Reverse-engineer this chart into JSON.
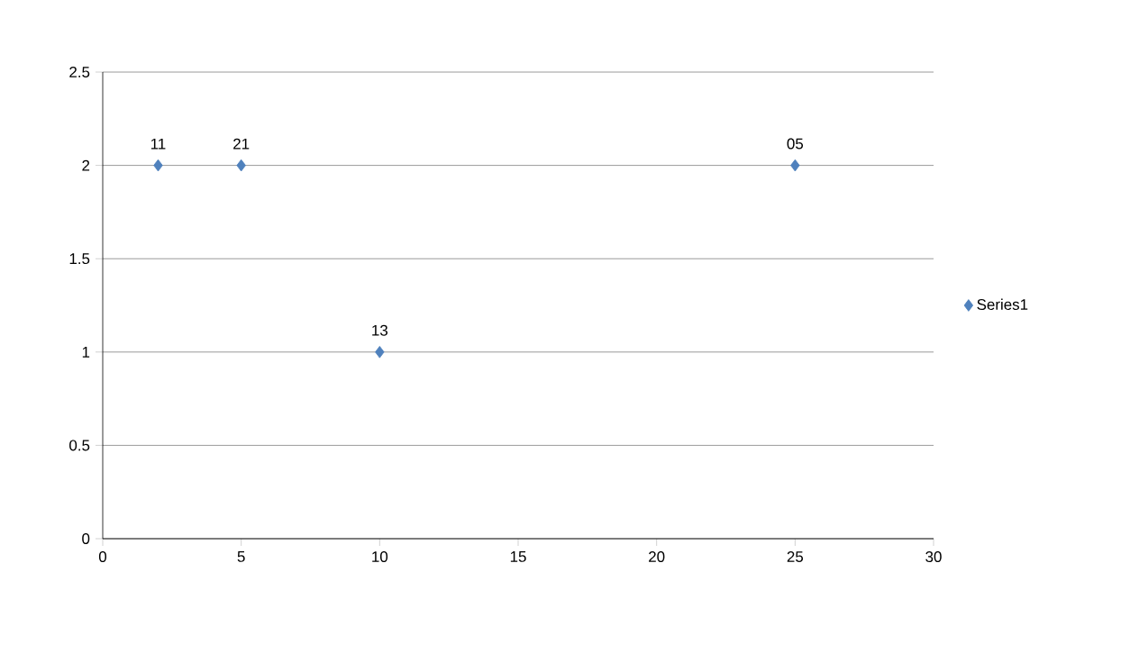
{
  "chart_data": {
    "type": "scatter",
    "x": [
      2,
      5,
      10,
      25
    ],
    "series": [
      {
        "name": "Series1",
        "color": "#4f81bd",
        "values": [
          2,
          2,
          1,
          2
        ]
      }
    ],
    "annotations": [
      {
        "text": "11",
        "x": 2,
        "y": 2
      },
      {
        "text": "21",
        "x": 5,
        "y": 2
      },
      {
        "text": "13",
        "x": 10,
        "y": 1
      },
      {
        "text": "05",
        "x": 25,
        "y": 2
      }
    ],
    "xlim": [
      0,
      30
    ],
    "xticks": [
      0,
      5,
      10,
      15,
      20,
      25,
      30
    ],
    "ylim": [
      0,
      2.5
    ],
    "yticks": [
      0,
      0.5,
      1,
      1.5,
      2,
      2.5
    ],
    "grid": "y",
    "legend": "right",
    "marker": "diamond"
  }
}
